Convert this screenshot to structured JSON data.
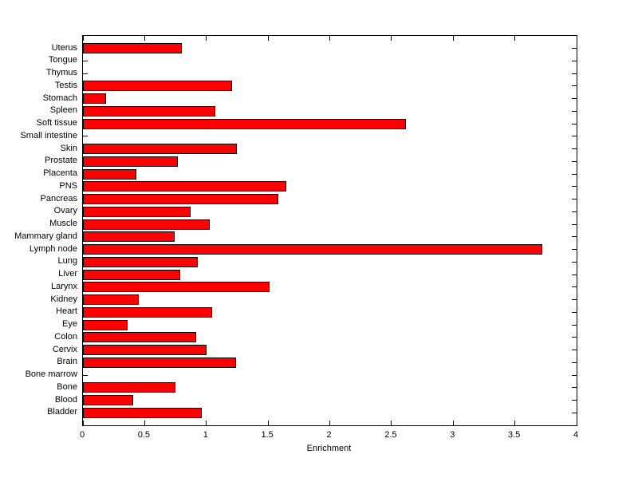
{
  "figure": {
    "background_color": "#ffffff",
    "axis_color": "#000000"
  },
  "chart_data": {
    "type": "bar",
    "orientation": "horizontal",
    "title": "",
    "xlabel": "Enrichment",
    "ylabel": "",
    "xlim": [
      0,
      4
    ],
    "x_ticks": [
      0,
      0.5,
      1,
      1.5,
      2,
      2.5,
      3,
      3.5,
      4
    ],
    "x_tick_labels": [
      "0",
      "0.5",
      "1",
      "1.5",
      "2",
      "2.5",
      "3",
      "3.5",
      "4"
    ],
    "grid": false,
    "legend": null,
    "bar_color": "#ff0000",
    "bar_edge_color": "#000000",
    "categories": [
      "Uterus",
      "Tongue",
      "Thymus",
      "Testis",
      "Stomach",
      "Spleen",
      "Soft tissue",
      "Small intestine",
      "Skin",
      "Prostate",
      "Placenta",
      "PNS",
      "Pancreas",
      "Ovary",
      "Muscle",
      "Mammary gland",
      "Lymph node",
      "Lung",
      "Liver",
      "Larynx",
      "Kidney",
      "Heart",
      "Eye",
      "Colon",
      "Cervix",
      "Brain",
      "Bone marrow",
      "Bone",
      "Blood",
      "Bladder"
    ],
    "values": [
      0.8,
      0,
      0,
      1.21,
      0.19,
      1.07,
      2.62,
      0,
      1.25,
      0.77,
      0.43,
      1.65,
      1.58,
      0.87,
      1.03,
      0.74,
      3.72,
      0.93,
      0.79,
      1.51,
      0.45,
      1.05,
      0.36,
      0.92,
      1.0,
      1.24,
      0,
      0.75,
      0.41,
      0.96
    ]
  }
}
